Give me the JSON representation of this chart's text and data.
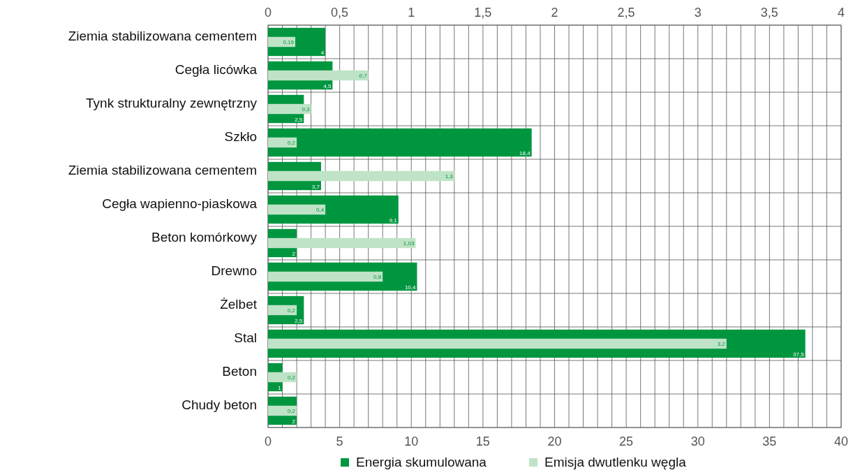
{
  "chart_data": {
    "type": "bar",
    "orientation": "horizontal",
    "categories": [
      "Ziemia stabilizowana cementem",
      "Cegła licówka",
      "Tynk strukturalny zewnętrzny",
      "Szkło",
      "Ziemia stabilizowana cementem",
      "Cegła wapienno-piaskowa",
      "Beton komórkowy",
      "Drewno",
      "Żelbet",
      "Stal",
      "Beton",
      "Chudy beton"
    ],
    "series": [
      {
        "name": "Energia skumulowana",
        "color": "#009640",
        "values": [
          4,
          4.5,
          2.5,
          18.4,
          3.7,
          9.1,
          2,
          10.4,
          2.5,
          37.5,
          1,
          2
        ],
        "value_labels": [
          "4",
          "4,5",
          "2,5",
          "18,4",
          "3,7",
          "9,1",
          "2",
          "10,4",
          "2,5",
          "37,5",
          "1",
          "2"
        ]
      },
      {
        "name": "Emisja dwutlenku węgla",
        "color": "#bfe3c6",
        "axis": "x2",
        "values": [
          0.19,
          0.7,
          0.3,
          0.2,
          1.3,
          0.4,
          1.03,
          0.8,
          0.2,
          3.2,
          0.2,
          0.2
        ],
        "value_labels": [
          "0,19",
          "0,7",
          "0,3",
          "0,2",
          "1,3",
          "0,4",
          "1,03",
          "0,8",
          "0,2",
          "3,2",
          "0,2",
          "0,2"
        ]
      }
    ],
    "xlim": [
      0,
      40
    ],
    "xticks": [
      0,
      {
        "value": 1,
        "label": null
      },
      {
        "value": 2,
        "label": null
      },
      {
        "value": 3,
        "label": null
      },
      {
        "value": 4,
        "label": null
      },
      5,
      {
        "value": 6,
        "label": null
      },
      {
        "value": 7,
        "label": null
      },
      {
        "value": 8,
        "label": null
      },
      {
        "value": 9,
        "label": null
      },
      10,
      {
        "value": 11,
        "label": null
      },
      {
        "value": 12,
        "label": null
      },
      {
        "value": 13,
        "label": null
      },
      {
        "value": 14,
        "label": null
      },
      15,
      {
        "value": 16,
        "label": null
      },
      {
        "value": 17,
        "label": null
      },
      {
        "value": 18,
        "label": null
      },
      {
        "value": 19,
        "label": null
      },
      20,
      {
        "value": 21,
        "label": null
      },
      {
        "value": 22,
        "label": null
      },
      {
        "value": 23,
        "label": null
      },
      {
        "value": 24,
        "label": null
      },
      25,
      {
        "value": 26,
        "label": null
      },
      {
        "value": 27,
        "label": null
      },
      {
        "value": 28,
        "label": null
      },
      {
        "value": 29,
        "label": null
      },
      30,
      {
        "value": 31,
        "label": null
      },
      {
        "value": 32,
        "label": null
      },
      {
        "value": 33,
        "label": null
      },
      {
        "value": 34,
        "label": null
      },
      35,
      {
        "value": 36,
        "label": null
      },
      {
        "value": 37,
        "label": null
      },
      {
        "value": 38,
        "label": null
      },
      {
        "value": 39,
        "label": null
      },
      40
    ],
    "x2lim": [
      0,
      4
    ],
    "x2ticks": [
      0,
      {
        "value": 0.5,
        "label": "0,5"
      },
      1,
      {
        "value": 1.5,
        "label": "1,5"
      },
      2,
      {
        "value": 2.5,
        "label": "2,5"
      },
      3,
      {
        "value": 3.5,
        "label": "3,5"
      },
      4
    ],
    "grid": true,
    "legend": "bottom"
  }
}
